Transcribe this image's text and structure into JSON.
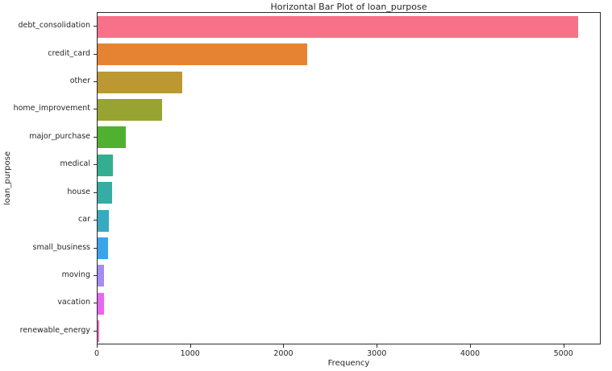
{
  "chart_data": {
    "type": "bar",
    "orientation": "horizontal",
    "title": "Horizontal Bar Plot of loan_purpose",
    "xlabel": "Frequency",
    "ylabel": "loan_purpose",
    "categories": [
      "debt_consolidation",
      "credit_card",
      "other",
      "home_improvement",
      "major_purchase",
      "medical",
      "house",
      "car",
      "small_business",
      "moving",
      "vacation",
      "renewable_energy"
    ],
    "values": [
      5150,
      2250,
      910,
      690,
      300,
      160,
      155,
      125,
      115,
      70,
      68,
      15
    ],
    "bar_colors": [
      "#f77189",
      "#e68332",
      "#bb9832",
      "#97a431",
      "#50b131",
      "#34ae91",
      "#36ada4",
      "#38aabf",
      "#3ba3ec",
      "#a48cf4",
      "#e866f4",
      "#f668c2"
    ],
    "x_ticks": [
      0,
      1000,
      2000,
      3000,
      4000,
      5000
    ],
    "xlim": [
      0,
      5400
    ],
    "grid": false,
    "legend": "none"
  }
}
